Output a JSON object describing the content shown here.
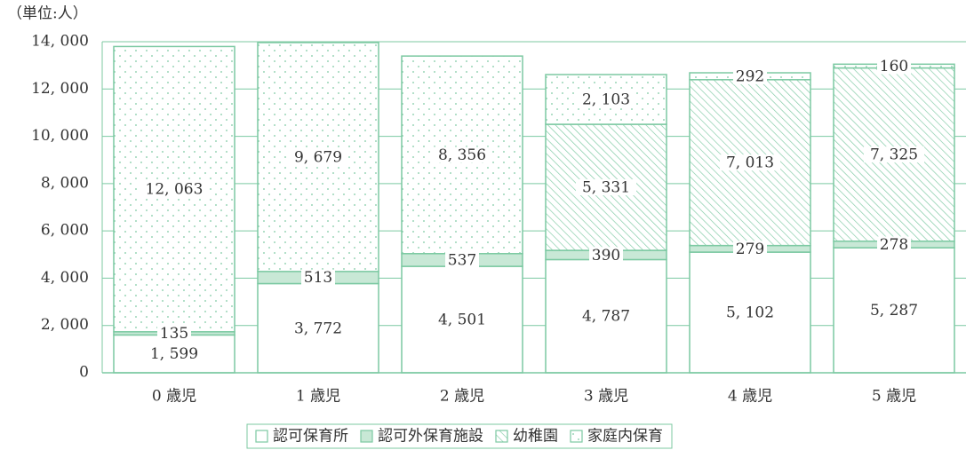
{
  "chart_data": {
    "type": "stacked_bar",
    "unit_label": "（単位:人）",
    "categories": [
      "0 歳児",
      "1 歳児",
      "2 歳児",
      "3 歳児",
      "4 歳児",
      "5 歳児"
    ],
    "series": [
      {
        "name": "認可保育所",
        "color": "#ffffff",
        "pattern": "none",
        "values": [
          1599,
          3772,
          4501,
          4787,
          5102,
          5287
        ],
        "value_labels": [
          "1, 599",
          "3, 772",
          "4, 501",
          "4, 787",
          "5, 102",
          "5, 287"
        ]
      },
      {
        "name": "認可外保育施設",
        "color": "#c8e8d6",
        "pattern": "none",
        "values": [
          135,
          513,
          537,
          390,
          279,
          278
        ],
        "value_labels": [
          "135",
          "513",
          "537",
          "390",
          "279",
          "278"
        ]
      },
      {
        "name": "幼稚園",
        "color": "#ffffff",
        "pattern": "hatch",
        "values": [
          null,
          null,
          null,
          5331,
          7013,
          7325
        ],
        "value_labels": [
          null,
          null,
          null,
          "5, 331",
          "7, 013",
          "7, 325"
        ]
      },
      {
        "name": "家庭内保育",
        "color": "#ffffff",
        "pattern": "dots",
        "values": [
          12063,
          9679,
          8356,
          2103,
          292,
          160
        ],
        "value_labels": [
          "12, 063",
          "9, 679",
          "8, 356",
          "2, 103",
          "292",
          "160"
        ]
      }
    ],
    "ylim": [
      0,
      14000
    ],
    "yticks": [
      0,
      {
        "value": 2000,
        "label": "2, 000"
      },
      {
        "value": 4000,
        "label": "4, 000"
      },
      {
        "value": 6000,
        "label": "6, 000"
      },
      {
        "value": 8000,
        "label": "8, 000"
      },
      {
        "value": 10000,
        "label": "10, 000"
      },
      {
        "value": 12000,
        "label": "12, 000"
      },
      {
        "value": 14000,
        "label": "14, 000"
      }
    ],
    "grid": true,
    "line_color": "#7cc9a2"
  }
}
